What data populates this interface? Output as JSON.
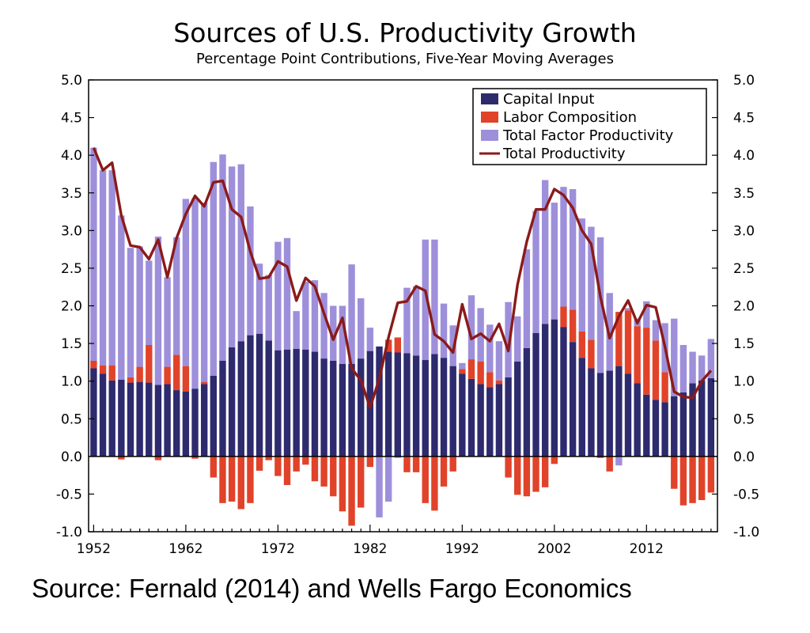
{
  "title": "Sources of U.S. Productivity Growth",
  "subtitle": "Percentage Point Contributions, Five-Year Moving Averages",
  "source": "Source: Fernald (2014) and Wells Fargo Economics",
  "colors": {
    "capital": "#2e2a6e",
    "labor": "#e0432a",
    "tfp": "#9e8fdb",
    "total": "#8b1a1a"
  },
  "chart_data": {
    "type": "bar",
    "stacked": true,
    "x": [
      1952,
      1953,
      1954,
      1955,
      1956,
      1957,
      1958,
      1959,
      1960,
      1961,
      1962,
      1963,
      1964,
      1965,
      1966,
      1967,
      1968,
      1969,
      1970,
      1971,
      1972,
      1973,
      1974,
      1975,
      1976,
      1977,
      1978,
      1979,
      1980,
      1981,
      1982,
      1983,
      1984,
      1985,
      1986,
      1987,
      1988,
      1989,
      1990,
      1991,
      1992,
      1993,
      1994,
      1995,
      1996,
      1997,
      1998,
      1999,
      2000,
      2001,
      2002,
      2003,
      2004,
      2005,
      2006,
      2007,
      2008,
      2009,
      2010,
      2011,
      2012,
      2013,
      2014,
      2015,
      2016,
      2017,
      2018,
      2019
    ],
    "x_ticks": [
      "1952",
      "1962",
      "1972",
      "1982",
      "1992",
      "2002",
      "2012"
    ],
    "ylim": [
      -1.0,
      5.0
    ],
    "y_ticks": [
      "-1.0",
      "-0.5",
      "0.0",
      "0.5",
      "1.0",
      "1.5",
      "2.0",
      "2.5",
      "3.0",
      "3.5",
      "4.0",
      "4.5",
      "5.0"
    ],
    "legend_position": "top-right",
    "series": [
      {
        "name": "Capital Input",
        "kind": "bar",
        "color_key": "capital",
        "values": [
          1.17,
          1.1,
          1.01,
          1.02,
          0.98,
          0.99,
          0.98,
          0.95,
          0.96,
          0.88,
          0.86,
          0.9,
          0.96,
          1.07,
          1.27,
          1.45,
          1.53,
          1.61,
          1.63,
          1.54,
          1.41,
          1.42,
          1.43,
          1.42,
          1.39,
          1.3,
          1.27,
          1.23,
          1.23,
          1.3,
          1.4,
          1.46,
          1.39,
          1.38,
          1.37,
          1.34,
          1.28,
          1.36,
          1.31,
          1.2,
          1.1,
          1.03,
          0.96,
          0.92,
          0.96,
          1.05,
          1.26,
          1.44,
          1.64,
          1.76,
          1.82,
          1.72,
          1.52,
          1.31,
          1.17,
          1.11,
          1.14,
          1.2,
          1.1,
          0.97,
          0.82,
          0.75,
          0.72,
          0.8,
          0.85,
          0.97,
          1.01,
          1.04
        ]
      },
      {
        "name": "Labor Composition",
        "kind": "bar",
        "color_key": "labor",
        "values": [
          0.1,
          0.11,
          0.2,
          -0.04,
          0.07,
          0.2,
          0.5,
          -0.05,
          0.23,
          0.47,
          0.34,
          -0.03,
          0.03,
          -0.28,
          -0.62,
          -0.6,
          -0.7,
          -0.62,
          -0.19,
          -0.05,
          -0.26,
          -0.38,
          -0.2,
          -0.11,
          -0.33,
          -0.4,
          -0.53,
          -0.73,
          -0.92,
          -0.68,
          -0.14,
          -0.01,
          0.16,
          0.2,
          -0.21,
          -0.21,
          -0.62,
          -0.72,
          -0.4,
          -0.2,
          0.06,
          0.26,
          0.3,
          0.2,
          0.05,
          -0.28,
          -0.51,
          -0.53,
          -0.47,
          -0.41,
          -0.1,
          0.27,
          0.43,
          0.35,
          0.38,
          -0.02,
          -0.2,
          0.72,
          0.84,
          0.76,
          0.89,
          0.79,
          0.4,
          -0.43,
          -0.65,
          -0.62,
          -0.58,
          -0.48
        ]
      },
      {
        "name": "Total Factor Productivity",
        "kind": "bar",
        "color_key": "tfp",
        "values": [
          2.83,
          2.59,
          2.59,
          2.18,
          1.72,
          1.6,
          1.12,
          1.97,
          1.19,
          1.56,
          2.22,
          2.53,
          2.38,
          2.84,
          2.74,
          2.4,
          2.35,
          1.71,
          0.93,
          0.87,
          1.44,
          1.48,
          0.5,
          0.9,
          0.95,
          0.87,
          0.73,
          0.77,
          1.32,
          0.8,
          0.31,
          -0.8,
          -0.6,
          -0.02,
          0.87,
          0.92,
          1.6,
          1.52,
          0.72,
          0.54,
          0.08,
          0.85,
          0.71,
          0.63,
          0.52,
          1.0,
          0.6,
          1.31,
          1.62,
          1.91,
          1.55,
          1.59,
          1.6,
          1.5,
          1.5,
          1.8,
          1.03,
          -0.12,
          0.03,
          0.1,
          0.35,
          0.27,
          0.65,
          1.03,
          0.63,
          0.42,
          0.33,
          0.52
        ]
      },
      {
        "name": "Total Productivity",
        "kind": "line",
        "color_key": "total",
        "values": [
          4.1,
          3.8,
          3.9,
          3.2,
          2.8,
          2.78,
          2.62,
          2.88,
          2.38,
          2.9,
          3.22,
          3.46,
          3.32,
          3.64,
          3.66,
          3.28,
          3.18,
          2.72,
          2.36,
          2.38,
          2.59,
          2.52,
          2.07,
          2.37,
          2.26,
          1.9,
          1.55,
          1.84,
          1.17,
          1.01,
          0.65,
          1.03,
          1.58,
          2.04,
          2.06,
          2.26,
          2.2,
          1.62,
          1.53,
          1.38,
          2.02,
          1.56,
          1.63,
          1.53,
          1.76,
          1.4,
          2.28,
          2.85,
          3.28,
          3.28,
          3.55,
          3.47,
          3.3,
          3.0,
          2.82,
          2.12,
          1.57,
          1.86,
          2.07,
          1.77,
          2.01,
          1.98,
          1.46,
          0.86,
          0.79,
          0.78,
          1.0,
          1.14
        ]
      }
    ]
  }
}
